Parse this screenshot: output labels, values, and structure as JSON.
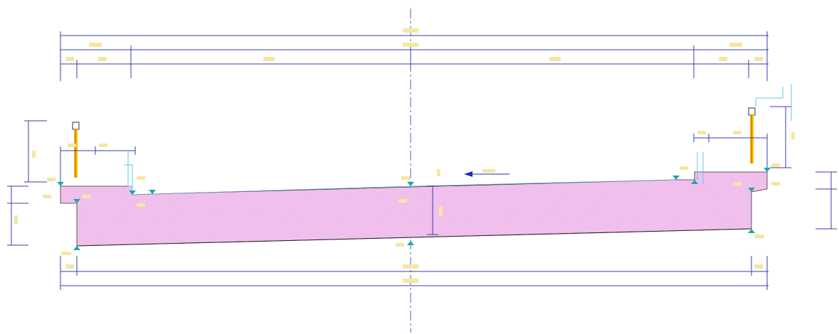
{
  "drawing": {
    "type": "bridge-deck-cross-section",
    "colors": {
      "dimension_line": "#3b3bb0",
      "centerline": "#5a5ac8",
      "dimension_text": "#e8d25a",
      "section_fill": "#f3c6ef",
      "section_hatch": "#e4a4dd",
      "section_outline": "#333333",
      "slope_arrow": "#1c2fb4",
      "elevation_marker": "#1aa7a7",
      "barrier": "#f2c400",
      "barrier_accent": "#e05a10",
      "leader": "#5cc8e6"
    },
    "symbols": {
      "slope": "slope-arrow-icon",
      "elevation": "elevation-marker-icon",
      "barrier": "barrier-icon"
    }
  }
}
